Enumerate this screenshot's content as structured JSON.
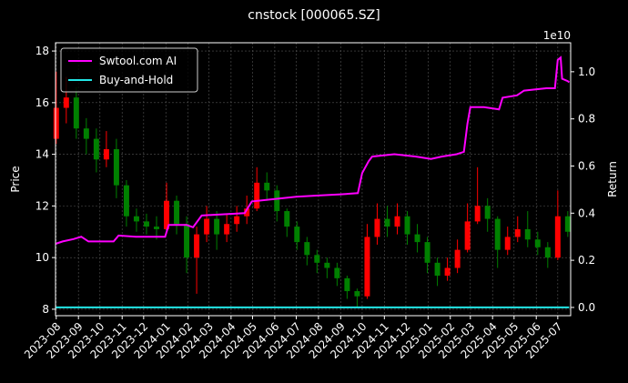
{
  "chart_data": {
    "type": "candlestick",
    "title": "cnstock [000065.SZ]",
    "ylabel": "Price",
    "y2label": "Return",
    "y2_offset_label": "1e10",
    "x": [
      "2023-08-01",
      "2023-08-15",
      "2023-08-29",
      "2023-09-12",
      "2023-09-26",
      "2023-10-10",
      "2023-10-24",
      "2023-11-07",
      "2023-11-21",
      "2023-12-05",
      "2023-12-19",
      "2024-01-02",
      "2024-01-16",
      "2024-01-30",
      "2024-02-13",
      "2024-02-27",
      "2024-03-12",
      "2024-03-26",
      "2024-04-09",
      "2024-04-23",
      "2024-05-07",
      "2024-05-21",
      "2024-06-04",
      "2024-06-18",
      "2024-07-02",
      "2024-07-16",
      "2024-07-30",
      "2024-08-13",
      "2024-08-27",
      "2024-09-10",
      "2024-09-24",
      "2024-10-08",
      "2024-10-22",
      "2024-11-05",
      "2024-11-19",
      "2024-12-03",
      "2024-12-17",
      "2024-12-31",
      "2025-01-14",
      "2025-01-28",
      "2025-02-11",
      "2025-02-25",
      "2025-03-11",
      "2025-03-25",
      "2025-04-08",
      "2025-04-22",
      "2025-05-06",
      "2025-05-20",
      "2025-06-03",
      "2025-06-17",
      "2025-07-01",
      "2025-07-15"
    ],
    "open": [
      14.6,
      15.8,
      16.2,
      15.0,
      14.6,
      13.8,
      14.2,
      12.8,
      11.6,
      11.4,
      11.2,
      11.1,
      12.2,
      11.3,
      10.0,
      10.9,
      11.5,
      10.9,
      11.3,
      11.6,
      11.9,
      12.9,
      12.6,
      11.8,
      11.2,
      10.6,
      10.1,
      9.8,
      9.6,
      9.2,
      8.7,
      8.5,
      10.8,
      11.5,
      11.2,
      11.6,
      10.9,
      10.6,
      9.8,
      9.3,
      9.6,
      10.3,
      11.4,
      12.0,
      11.5,
      10.3,
      10.8,
      11.1,
      10.7,
      10.4,
      10.0,
      11.6
    ],
    "high": [
      17.2,
      17.0,
      16.6,
      15.4,
      15.0,
      14.9,
      14.6,
      13.0,
      11.9,
      11.7,
      11.6,
      12.9,
      12.4,
      11.6,
      11.2,
      12.0,
      11.8,
      11.7,
      12.0,
      12.4,
      13.5,
      13.3,
      12.8,
      11.9,
      11.4,
      10.8,
      10.3,
      10.0,
      9.8,
      9.3,
      8.8,
      11.3,
      12.1,
      12.0,
      12.1,
      11.8,
      11.3,
      10.8,
      10.0,
      10.0,
      10.7,
      12.1,
      13.5,
      12.3,
      11.6,
      11.2,
      11.6,
      11.8,
      11.0,
      10.6,
      12.6,
      11.8
    ],
    "low": [
      14.4,
      15.2,
      14.6,
      14.0,
      13.3,
      13.5,
      12.3,
      11.2,
      11.0,
      10.9,
      10.7,
      11.0,
      10.9,
      9.4,
      8.6,
      10.6,
      10.3,
      10.6,
      11.0,
      11.3,
      11.8,
      12.2,
      11.4,
      10.8,
      10.3,
      9.7,
      9.4,
      9.2,
      8.9,
      8.4,
      8.1,
      8.4,
      10.5,
      10.8,
      10.9,
      10.5,
      10.2,
      9.4,
      8.9,
      9.1,
      9.4,
      10.2,
      11.3,
      11.0,
      9.6,
      10.1,
      10.6,
      10.4,
      10.1,
      9.6,
      9.9,
      10.8
    ],
    "close": [
      15.8,
      16.2,
      15.0,
      14.6,
      13.8,
      14.2,
      12.8,
      11.6,
      11.4,
      11.2,
      11.1,
      12.2,
      11.3,
      10.0,
      10.9,
      11.5,
      10.9,
      11.3,
      11.6,
      11.9,
      12.9,
      12.6,
      11.8,
      11.2,
      10.6,
      10.1,
      9.8,
      9.6,
      9.2,
      8.7,
      8.5,
      10.8,
      11.5,
      11.2,
      11.6,
      10.9,
      10.6,
      9.8,
      9.3,
      9.6,
      10.3,
      11.4,
      12.0,
      11.5,
      10.3,
      10.8,
      11.1,
      10.7,
      10.4,
      10.0,
      11.6,
      11.0
    ],
    "up_color": "#ff0000",
    "down_color": "#008000",
    "xlim": [
      "2023-07-31",
      "2025-07-19"
    ],
    "xticks": [
      {
        "value": "2023-08-01",
        "label": "2023-08"
      },
      {
        "value": "2023-09-01",
        "label": "2023-09"
      },
      {
        "value": "2023-10-01",
        "label": "2023-10"
      },
      {
        "value": "2023-11-01",
        "label": "2023-11"
      },
      {
        "value": "2023-12-01",
        "label": "2023-12"
      },
      {
        "value": "2024-01-01",
        "label": "2024-01"
      },
      {
        "value": "2024-02-01",
        "label": "2024-02"
      },
      {
        "value": "2024-03-01",
        "label": "2024-03"
      },
      {
        "value": "2024-04-01",
        "label": "2024-04"
      },
      {
        "value": "2024-05-01",
        "label": "2024-05"
      },
      {
        "value": "2024-06-01",
        "label": "2024-06"
      },
      {
        "value": "2024-07-01",
        "label": "2024-07"
      },
      {
        "value": "2024-08-01",
        "label": "2024-08"
      },
      {
        "value": "2024-09-01",
        "label": "2024-09"
      },
      {
        "value": "2024-10-01",
        "label": "2024-10"
      },
      {
        "value": "2024-11-01",
        "label": "2024-11"
      },
      {
        "value": "2024-12-01",
        "label": "2024-12"
      },
      {
        "value": "2025-01-01",
        "label": "2025-01"
      },
      {
        "value": "2025-02-01",
        "label": "2025-02"
      },
      {
        "value": "2025-03-01",
        "label": "2025-03"
      },
      {
        "value": "2025-04-01",
        "label": "2025-04"
      },
      {
        "value": "2025-05-01",
        "label": "2025-05"
      },
      {
        "value": "2025-06-01",
        "label": "2025-06"
      },
      {
        "value": "2025-07-01",
        "label": "2025-07"
      }
    ],
    "ylim": [
      7.75,
      18.32
    ],
    "yticks": [
      8,
      10,
      12,
      14,
      16,
      18
    ],
    "y2lim": [
      -0.035,
      1.123
    ],
    "y2ticks": [
      {
        "value": 0,
        "label": "0.0"
      },
      0.2,
      0.4,
      0.6,
      0.8,
      {
        "value": 1,
        "label": "1.0"
      }
    ],
    "grid": true,
    "legend": "upper left",
    "series": [
      {
        "name": "Swtool.com AI",
        "color": "#ff00ff",
        "axis": "y2",
        "x": [
          "2023-07-31",
          "2023-08-10",
          "2023-08-25",
          "2023-09-05",
          "2023-09-15",
          "2023-10-01",
          "2023-10-20",
          "2023-10-27",
          "2023-11-20",
          "2023-12-15",
          "2023-12-31",
          "2024-01-05",
          "2024-01-30",
          "2024-02-08",
          "2024-02-20",
          "2024-03-20",
          "2024-04-20",
          "2024-04-30",
          "2024-06-01",
          "2024-07-01",
          "2024-08-01",
          "2024-09-01",
          "2024-09-25",
          "2024-10-01",
          "2024-10-10",
          "2024-10-15",
          "2024-11-15",
          "2024-12-15",
          "2025-01-05",
          "2025-01-20",
          "2025-02-10",
          "2025-02-20",
          "2025-02-25",
          "2025-03-01",
          "2025-03-20",
          "2025-04-10",
          "2025-04-15",
          "2025-05-05",
          "2025-05-15",
          "2025-06-15",
          "2025-06-27",
          "2025-07-01",
          "2025-07-05",
          "2025-07-07",
          "2025-07-15",
          "2025-07-17"
        ],
        "values": [
          0.27,
          0.28,
          0.29,
          0.3,
          0.28,
          0.28,
          0.28,
          0.305,
          0.3,
          0.3,
          0.3,
          0.35,
          0.35,
          0.34,
          0.39,
          0.395,
          0.4,
          0.45,
          0.46,
          0.47,
          0.475,
          0.48,
          0.485,
          0.57,
          0.62,
          0.64,
          0.65,
          0.64,
          0.63,
          0.64,
          0.65,
          0.66,
          0.78,
          0.85,
          0.85,
          0.84,
          0.89,
          0.9,
          0.92,
          0.93,
          0.93,
          1.05,
          1.06,
          0.97,
          0.96,
          0.955
        ]
      },
      {
        "name": "Buy-and-Hold",
        "color": "#22e6e6",
        "axis": "y2",
        "x": [
          "2023-07-31",
          "2025-07-17"
        ],
        "values": [
          0,
          0
        ]
      }
    ]
  }
}
